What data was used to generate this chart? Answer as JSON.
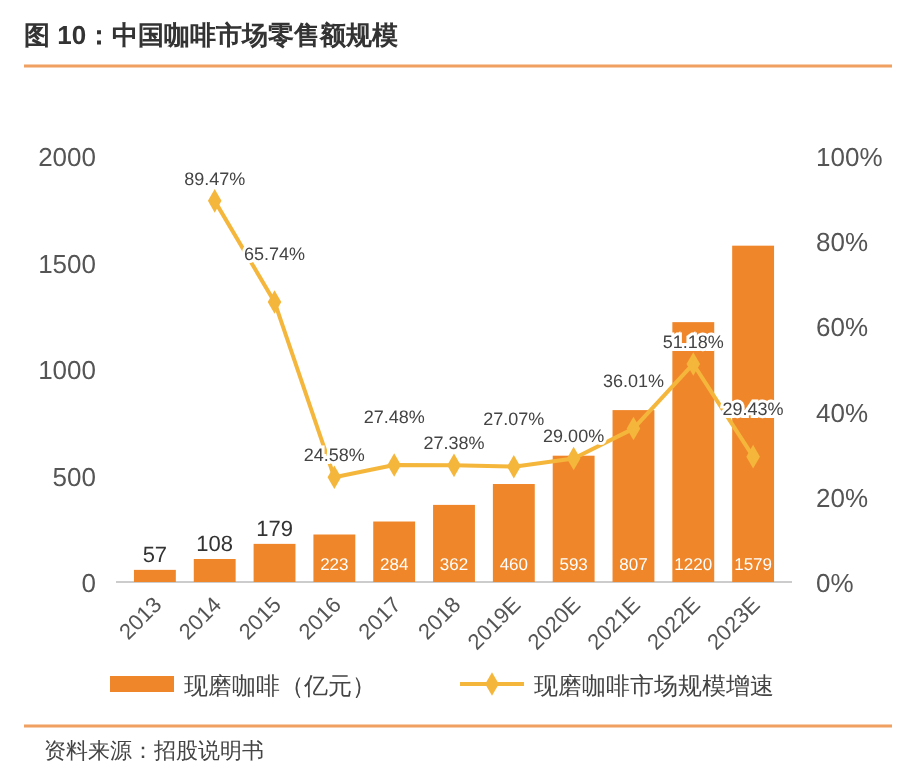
{
  "chart_data": {
    "type": "bar",
    "title": "图 10：中国咖啡市场零售额规模",
    "categories": [
      "2013",
      "2014",
      "2015",
      "2016",
      "2017",
      "2018",
      "2019E",
      "2020E",
      "2021E",
      "2022E",
      "2023E"
    ],
    "series": [
      {
        "name": "现磨咖啡（亿元）",
        "color": "#f0862a",
        "values": [
          57,
          108,
          179,
          223,
          284,
          362,
          460,
          593,
          807,
          1220,
          1579
        ],
        "value_labels": [
          "57",
          "108",
          "179",
          "223",
          "284",
          "362",
          "460",
          "593",
          "807",
          "1220",
          "1579"
        ]
      },
      {
        "name": "现磨咖啡市场规模增速",
        "type": "line",
        "axis": "y2",
        "color": "#f5b63c",
        "values": [
          null,
          89.47,
          65.74,
          24.58,
          27.48,
          27.38,
          27.07,
          29.0,
          36.01,
          51.18,
          29.43
        ],
        "value_labels": [
          null,
          "89.47%",
          "65.74%",
          "24.58%",
          "27.48%",
          "27.38%",
          "27.07%",
          "29.00%",
          "36.01%",
          "51.18%",
          "29.43%"
        ]
      }
    ],
    "ylim": [
      0,
      2000
    ],
    "yticks": [
      0,
      500,
      1000,
      1500,
      2000
    ],
    "y2lim": [
      0,
      100
    ],
    "y2ticks": [
      {
        "value": 0,
        "label": "0%"
      },
      {
        "value": 20,
        "label": "20%"
      },
      {
        "value": 40,
        "label": "40%"
      },
      {
        "value": 60,
        "label": "60%"
      },
      {
        "value": 80,
        "label": "80%"
      },
      {
        "value": 100,
        "label": "100%"
      }
    ],
    "marker": "diamond",
    "legend": "bottom",
    "grid": false,
    "annotations": [
      "资料来源：招股说明书"
    ]
  }
}
